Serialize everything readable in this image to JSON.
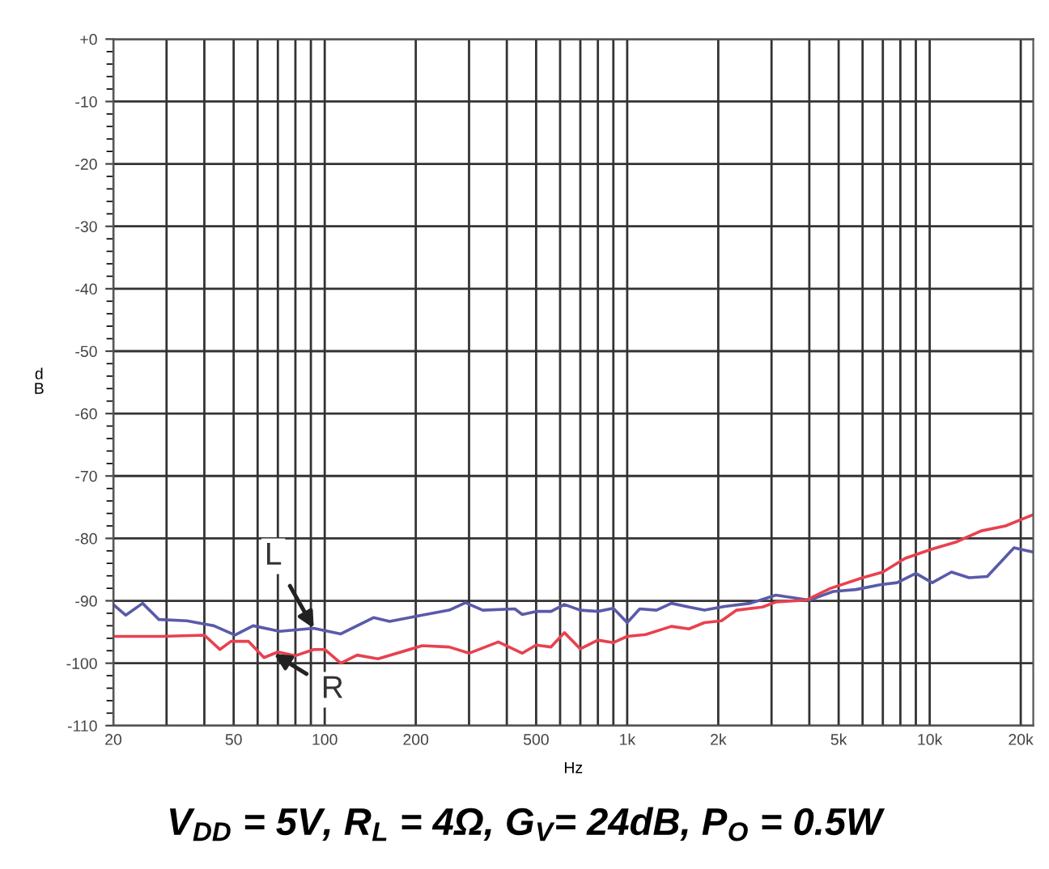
{
  "chart_data": {
    "type": "line",
    "title": "V$_{DD}$ = 5V, R$_{L}$ = 4Ω, G$_{V}$= 24dB, P$_{O}$ = 0.5W",
    "xlabel": "Hz",
    "ylabel": "dB",
    "log": "x",
    "grid": true,
    "legend": false,
    "marker": "none",
    "line_style": "solid",
    "xlim": [
      20,
      22000
    ],
    "xticks": [
      20,
      50,
      100,
      200,
      500,
      {
        "value": 1000,
        "label": "1k"
      },
      {
        "value": 2000,
        "label": "2k"
      },
      {
        "value": 5000,
        "label": "5k"
      },
      {
        "value": 10000,
        "label": "10k"
      },
      {
        "value": 20000,
        "label": "20k"
      }
    ],
    "ylim": [
      -110,
      0
    ],
    "yticks": [
      {
        "value": 0,
        "label": "+0"
      },
      -10,
      -20,
      -30,
      -40,
      -50,
      -60,
      -70,
      -80,
      -90,
      -100,
      -110
    ],
    "annotations": [
      {
        "text": "L",
        "x": 92,
        "y": -94.4
      },
      {
        "text": "R",
        "x": 68,
        "y": -98.5
      }
    ],
    "series": [
      {
        "color": "#5a5aaa",
        "x": [
          20,
          22,
          25,
          28.3,
          35,
          43,
          50.5,
          58,
          71,
          92,
          113,
          145,
          164,
          210,
          258,
          292,
          333,
          425,
          450,
          500,
          560,
          620,
          700,
          800,
          900,
          1000,
          1100,
          1250,
          1400,
          1600,
          1800,
          2100,
          2550,
          3100,
          4000,
          4800,
          5700,
          6900,
          7800,
          9000,
          10200,
          11800,
          13500,
          15500,
          19000,
          22000
        ],
        "values": [
          -90.6,
          -92.3,
          -90.4,
          -93,
          -93.2,
          -94,
          -95.5,
          -94,
          -94.9,
          -94.4,
          -95.3,
          -92.7,
          -93.3,
          -92.3,
          -91.5,
          -90.3,
          -91.5,
          -91.3,
          -92.2,
          -91.7,
          -91.7,
          -90.6,
          -91.5,
          -91.7,
          -91.2,
          -93.5,
          -91.3,
          -91.5,
          -90.4,
          -91,
          -91.5,
          -90.9,
          -90.4,
          -89.1,
          -89.9,
          -88.5,
          -88.2,
          -87.4,
          -87.1,
          -85.6,
          -87.1,
          -85.4,
          -86.3,
          -86.1,
          -81.5,
          -82.2
        ]
      },
      {
        "color": "#e8414f",
        "x": [
          20,
          29,
          40,
          45,
          49,
          56,
          63,
          70,
          80,
          92,
          100,
          113,
          128,
          150,
          210,
          258,
          300,
          375,
          450,
          500,
          560,
          620,
          700,
          800,
          900,
          1000,
          1150,
          1400,
          1600,
          1800,
          2050,
          2300,
          2800,
          3100,
          3900,
          4700,
          6000,
          7000,
          8300,
          10200,
          12200,
          14800,
          17800,
          22000
        ],
        "values": [
          -95.7,
          -95.7,
          -95.5,
          -97.8,
          -96.5,
          -96.5,
          -99.1,
          -98.2,
          -98.8,
          -97.8,
          -97.8,
          -100,
          -98.7,
          -99.3,
          -97.2,
          -97.4,
          -98.4,
          -96.6,
          -98.4,
          -97.1,
          -97.4,
          -95.1,
          -97.7,
          -96.3,
          -96.7,
          -95.7,
          -95.4,
          -94.1,
          -94.5,
          -93.5,
          -93.2,
          -91.5,
          -91,
          -90.2,
          -89.9,
          -88,
          -86.3,
          -85.4,
          -83.2,
          -81.7,
          -80.6,
          -78.8,
          -78,
          -76.2
        ]
      }
    ]
  }
}
